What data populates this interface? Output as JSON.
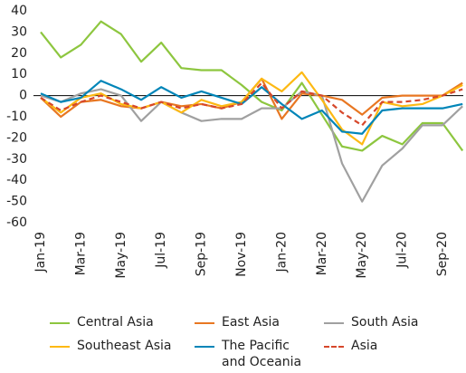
{
  "chart_data": {
    "type": "line",
    "categories": [
      "Jan-19",
      null,
      "Mar-19",
      null,
      "May-19",
      null,
      "Jul-19",
      null,
      "Sep-19",
      null,
      "Nov-19",
      null,
      "Jan-20",
      null,
      "Mar-20",
      null,
      "May-20",
      null,
      "Jul-20",
      null,
      "Sep-20",
      null
    ],
    "series": [
      {
        "name": "Central Asia",
        "color": "#8dc63f",
        "values": [
          30,
          18,
          24,
          35,
          29,
          16,
          25,
          13,
          12,
          12,
          5,
          -3,
          -7,
          6,
          -9,
          -24,
          -26,
          -19,
          -23,
          -13,
          -13,
          -26
        ]
      },
      {
        "name": "East Asia",
        "color": "#e87722",
        "values": [
          -1,
          -10,
          -3,
          -2,
          -5,
          -6,
          -3,
          -5,
          -4,
          -6,
          -3,
          8,
          -11,
          1,
          0,
          -2,
          -9,
          -1,
          0,
          0,
          0,
          6
        ]
      },
      {
        "name": "South Asia",
        "color": "#a0a0a0",
        "values": [
          0,
          -3,
          1,
          3,
          0,
          -12,
          -3,
          -8,
          -12,
          -11,
          -11,
          -6,
          -6,
          2,
          0,
          -32,
          -50,
          -33,
          -25,
          -14,
          -14,
          -5
        ]
      },
      {
        "name": "Southeast Asia",
        "color": "#fdb913",
        "values": [
          -1,
          -8,
          -1,
          1,
          -4,
          -6,
          -3,
          -8,
          -2,
          -5,
          -3,
          8,
          2,
          11,
          -2,
          -16,
          -23,
          -3,
          -5,
          -4,
          0,
          5
        ]
      },
      {
        "name": "The Pacific and Oceania",
        "color": "#0085b8",
        "values": [
          1,
          -3,
          -1,
          7,
          3,
          -2,
          4,
          -1,
          2,
          -1,
          -4,
          4,
          -4,
          -11,
          -7,
          -17,
          -18,
          -7,
          -6,
          -6,
          -6,
          -4
        ]
      },
      {
        "name": "Asia",
        "color": "#d6472b",
        "style": "dashed",
        "values": [
          -1,
          -7,
          -3,
          0,
          -3,
          -6,
          -3,
          -6,
          -4,
          -6,
          -4,
          6,
          -6,
          2,
          0,
          -8,
          -14,
          -3,
          -3,
          -2,
          0,
          3
        ]
      }
    ],
    "ylim": [
      -60,
      40
    ],
    "yticks": [
      -60,
      -50,
      -40,
      -30,
      -20,
      -10,
      0,
      10,
      20,
      30,
      40
    ]
  }
}
